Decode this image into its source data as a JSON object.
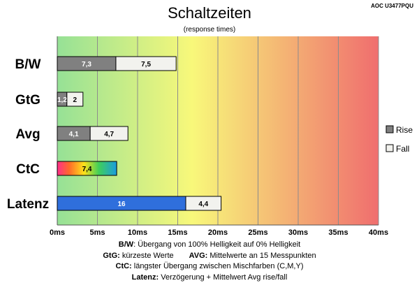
{
  "header": {
    "title": "Schaltzeiten",
    "subtitle": "(response times)",
    "model": "AOC U3477PQU"
  },
  "colors": {
    "rise": "#808080",
    "fall": "#f2f2ee",
    "latency": "#2f6fdc",
    "border": "#000000",
    "grid": "#8c8c8c",
    "background_stops": [
      "#96e196",
      "#f8f87a",
      "#f06e6e"
    ]
  },
  "chart_data": {
    "type": "bar",
    "orientation": "horizontal",
    "stacked": true,
    "title": "Schaltzeiten",
    "subtitle": "(response times)",
    "categories": [
      "B/W",
      "GtG",
      "Avg",
      "CtC",
      "Latenz"
    ],
    "x_ticks": [
      "0ms",
      "5ms",
      "10ms",
      "15ms",
      "20ms",
      "25ms",
      "30ms",
      "35ms",
      "40ms"
    ],
    "xlim": [
      0,
      40
    ],
    "grid": true,
    "legend_position": "right",
    "series": [
      {
        "name": "Rise",
        "values": [
          7.3,
          1.2,
          4.1,
          null,
          null
        ],
        "labels": [
          "7,3",
          "1,2",
          "4,1",
          "",
          ""
        ]
      },
      {
        "name": "Fall",
        "values": [
          7.5,
          2.0,
          4.7,
          null,
          4.4
        ],
        "labels": [
          "7,5",
          "2",
          "4,7",
          "",
          "4,4"
        ]
      }
    ],
    "ctc": {
      "value": 7.4,
      "label": "7,4"
    },
    "latency": {
      "value": 16,
      "label": "16"
    }
  },
  "footer": {
    "line1": {
      "key": "B/W",
      "text": ":  Übergang von 100% Helligkeit auf 0% Helligkeit"
    },
    "line2": {
      "key": "GtG:",
      "text": " kürzeste  Werte",
      "key2": "AVG:",
      "text2": " Mittelwerte  an 15 Messpunkten"
    },
    "line3": {
      "key": "CtC:",
      "text": " längster Übergang  zwischen Mischfarben (C,M,Y)"
    },
    "line4": {
      "key": "Latenz:",
      "text": " Verzögerung  + Mittelwert  Avg rise/fall"
    }
  }
}
